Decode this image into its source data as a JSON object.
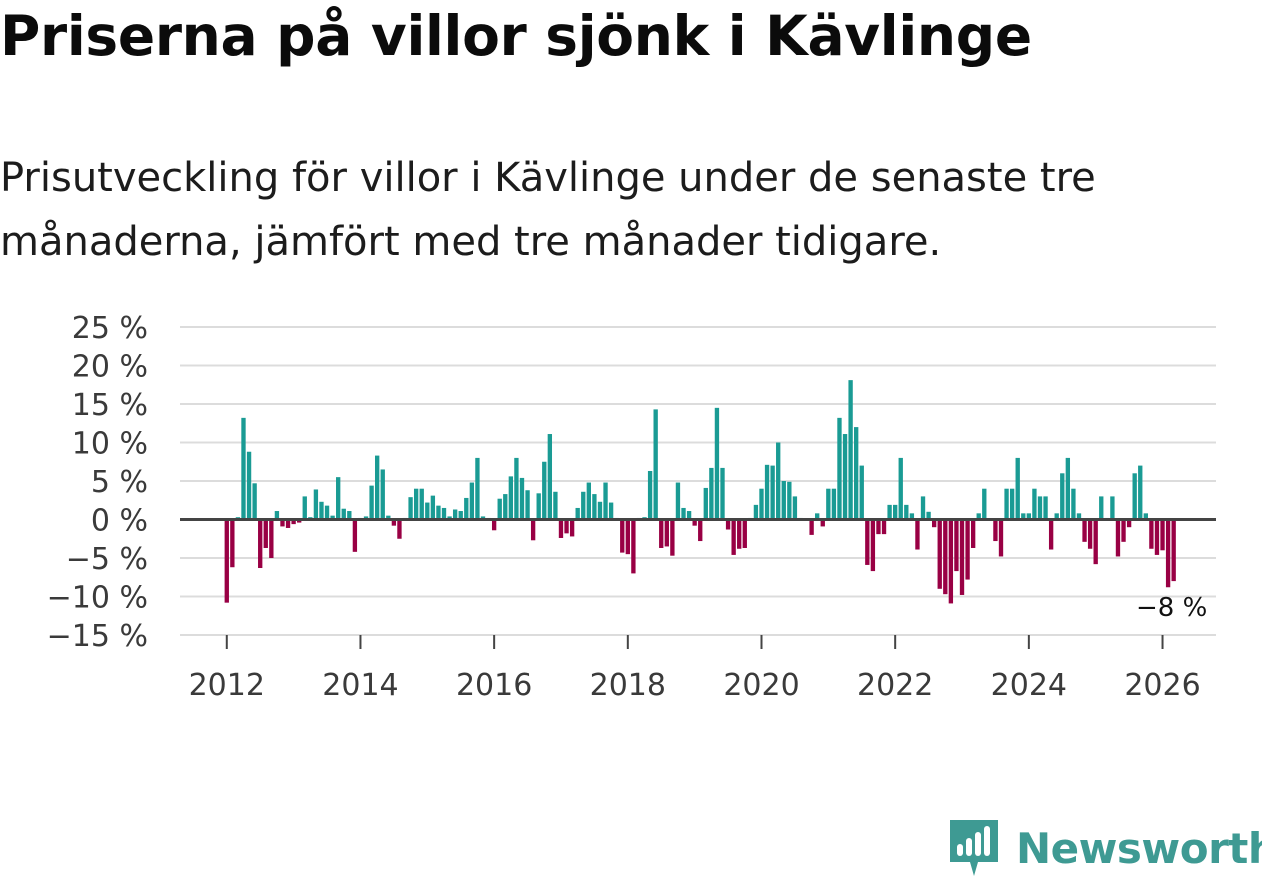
{
  "header": {
    "title": "Priserna på villor sjönk i Kävlinge",
    "subtitle": "Prisutveckling för villor i Kävlinge under de senaste tre månaderna, jämfört med tre månader tidigare."
  },
  "chart_data": {
    "type": "bar",
    "title": "Priserna på villor sjönk i Kävlinge",
    "xlabel": "",
    "ylabel": "",
    "ylim": [
      -15,
      25
    ],
    "xlim": [
      2011.3,
      2026.8
    ],
    "y_ticks": [
      25,
      20,
      15,
      10,
      5,
      0,
      -5,
      -10,
      -15
    ],
    "y_tick_labels": [
      "25 %",
      "20 %",
      "15 %",
      "10 %",
      "5 %",
      "0 %",
      "−5 %",
      "−10 %",
      "−15 %"
    ],
    "x_ticks": [
      2012,
      2014,
      2016,
      2018,
      2020,
      2022,
      2024,
      2026
    ],
    "x_tick_labels": [
      "2012",
      "2014",
      "2016",
      "2018",
      "2020",
      "2022",
      "2024",
      "2026"
    ],
    "grid": true,
    "start": {
      "year": 2012,
      "month": 1
    },
    "values": [
      -10.8,
      -6.2,
      0.3,
      13.2,
      8.8,
      4.7,
      -6.3,
      -3.7,
      -5.0,
      1.1,
      -0.9,
      -1.1,
      -0.6,
      -0.4,
      3.0,
      0.3,
      3.9,
      2.3,
      1.8,
      0.5,
      5.5,
      1.4,
      1.1,
      -4.2,
      0.2,
      0.4,
      4.4,
      8.3,
      6.5,
      0.5,
      -0.8,
      -2.5,
      0.2,
      2.9,
      4.0,
      4.0,
      2.2,
      3.1,
      1.8,
      1.5,
      0.4,
      1.3,
      1.1,
      2.8,
      4.8,
      8.0,
      0.4,
      0.2,
      -1.4,
      2.7,
      3.3,
      5.6,
      8.0,
      5.4,
      3.8,
      -2.7,
      3.4,
      7.5,
      11.1,
      3.6,
      -2.4,
      -1.8,
      -2.2,
      1.5,
      3.6,
      4.8,
      3.3,
      2.3,
      4.8,
      2.2,
      0.2,
      -4.3,
      -4.5,
      -7.0,
      0.2,
      0.3,
      6.3,
      14.3,
      -3.7,
      -3.5,
      -4.7,
      4.8,
      1.5,
      1.1,
      -0.8,
      -2.8,
      4.1,
      6.7,
      14.5,
      6.7,
      -1.3,
      -4.6,
      -3.8,
      -3.7,
      0.2,
      1.9,
      4.0,
      7.1,
      7.0,
      10.0,
      5.0,
      4.9,
      3.0,
      0.2,
      0.1,
      -2.0,
      0.8,
      -0.9,
      4.0,
      4.0,
      13.2,
      11.1,
      18.1,
      12.0,
      7.0,
      -5.9,
      -6.7,
      -1.9,
      -1.9,
      1.9,
      1.9,
      8.0,
      1.9,
      0.8,
      -3.9,
      3.0,
      1.0,
      -1.0,
      -9.0,
      -9.7,
      -10.9,
      -6.7,
      -9.8,
      -7.8,
      -3.7,
      0.8,
      4.0,
      0.1,
      -2.8,
      -4.8,
      4.0,
      4.0,
      8.0,
      0.8,
      0.8,
      4.0,
      3.0,
      3.0,
      -3.9,
      0.8,
      6.0,
      8.0,
      4.0,
      0.8,
      -2.9,
      -3.8,
      -5.8,
      3.0,
      0.2,
      3.0,
      -4.8,
      -2.9,
      -1.0,
      6.0,
      7.0,
      0.8,
      -3.8,
      -4.6,
      -4.0,
      -8.8,
      -8.0
    ],
    "last_value_label": "−8 %",
    "colors": {
      "positive": "#1a9b94",
      "negative": "#990044"
    }
  },
  "brand": {
    "name": "Newsworthy",
    "icon": "newsworthy-logo-icon",
    "color": "#3e9a93"
  }
}
